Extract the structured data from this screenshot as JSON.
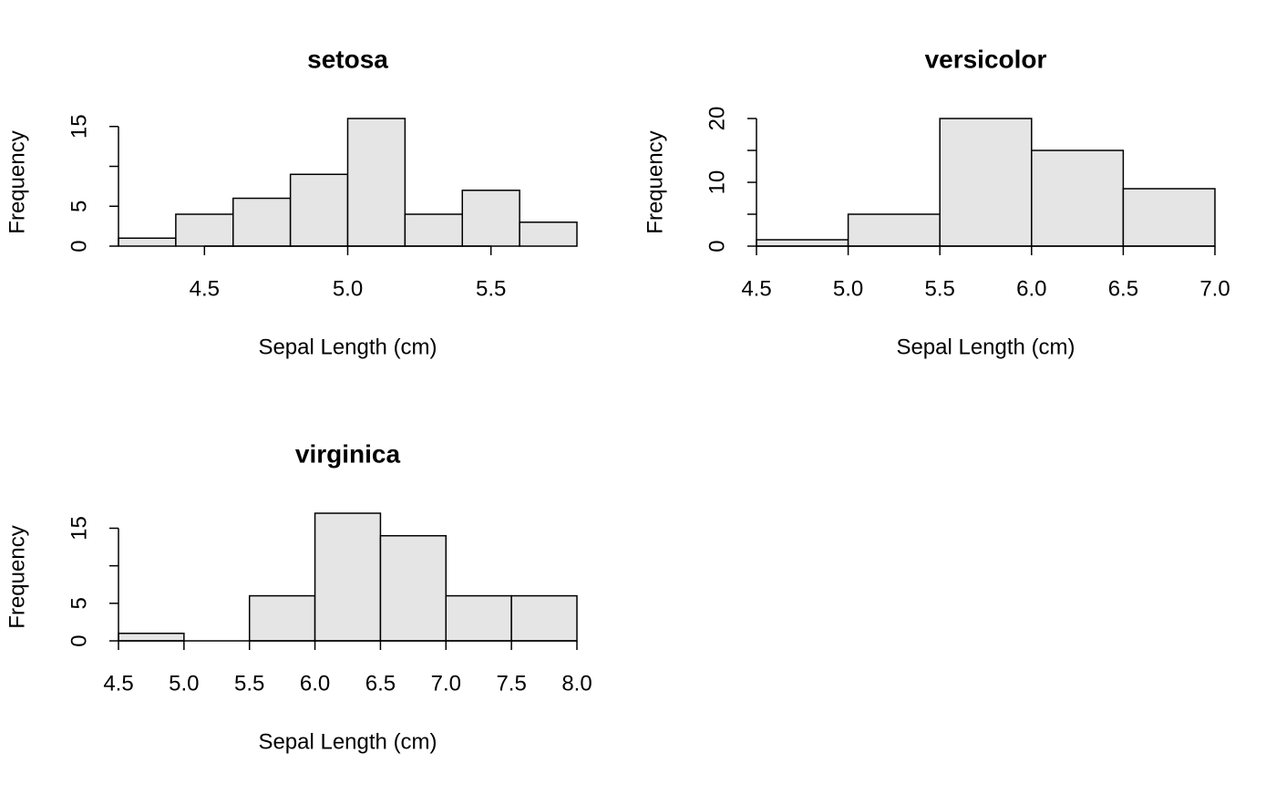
{
  "chart_data": [
    {
      "type": "histogram",
      "title": "setosa",
      "x_label": "Sepal Length (cm)",
      "y_label": "Frequency",
      "color": "#e5e5e5",
      "bins": [
        4.2,
        4.4,
        4.6,
        4.8,
        5.0,
        5.2,
        5.4,
        5.6,
        5.8
      ],
      "values": [
        1,
        4,
        6,
        9,
        16,
        4,
        7,
        3
      ],
      "xlim": [
        4.2,
        5.8
      ],
      "ylim": [
        0,
        16
      ],
      "xticks": [
        4.5,
        {
          "value": 5,
          "label": "5.0"
        },
        5.5
      ],
      "yticks": [
        0,
        5,
        {
          "value": 10,
          "label": null
        },
        15
      ]
    },
    {
      "type": "histogram",
      "title": "versicolor",
      "x_label": "Sepal Length (cm)",
      "y_label": "Frequency",
      "color": "#e5e5e5",
      "bins": [
        4.5,
        5.0,
        5.5,
        6.0,
        6.5,
        7.0
      ],
      "values": [
        1,
        5,
        20,
        15,
        9
      ],
      "xlim": [
        4.5,
        7.0
      ],
      "ylim": [
        0,
        20
      ],
      "xticks": [
        4.5,
        {
          "value": 5,
          "label": "5.0"
        },
        5.5,
        {
          "value": 6,
          "label": "6.0"
        },
        6.5,
        {
          "value": 7,
          "label": "7.0"
        }
      ],
      "yticks": [
        0,
        {
          "value": 5,
          "label": null
        },
        10,
        {
          "value": 15,
          "label": null
        },
        20
      ]
    },
    {
      "type": "histogram",
      "title": "virginica",
      "x_label": "Sepal Length (cm)",
      "y_label": "Frequency",
      "color": "#e5e5e5",
      "bins": [
        4.5,
        5.0,
        5.5,
        6.0,
        6.5,
        7.0,
        7.5,
        8.0
      ],
      "values": [
        1,
        0,
        6,
        17,
        14,
        6,
        6
      ],
      "xlim": [
        4.5,
        8.0
      ],
      "ylim": [
        0,
        17
      ],
      "xticks": [
        4.5,
        {
          "value": 5,
          "label": "5.0"
        },
        5.5,
        {
          "value": 6,
          "label": "6.0"
        },
        6.5,
        {
          "value": 7,
          "label": "7.0"
        },
        7.5,
        {
          "value": 8,
          "label": "8.0"
        }
      ],
      "yticks": [
        0,
        5,
        {
          "value": 10,
          "label": null
        },
        15
      ]
    }
  ]
}
